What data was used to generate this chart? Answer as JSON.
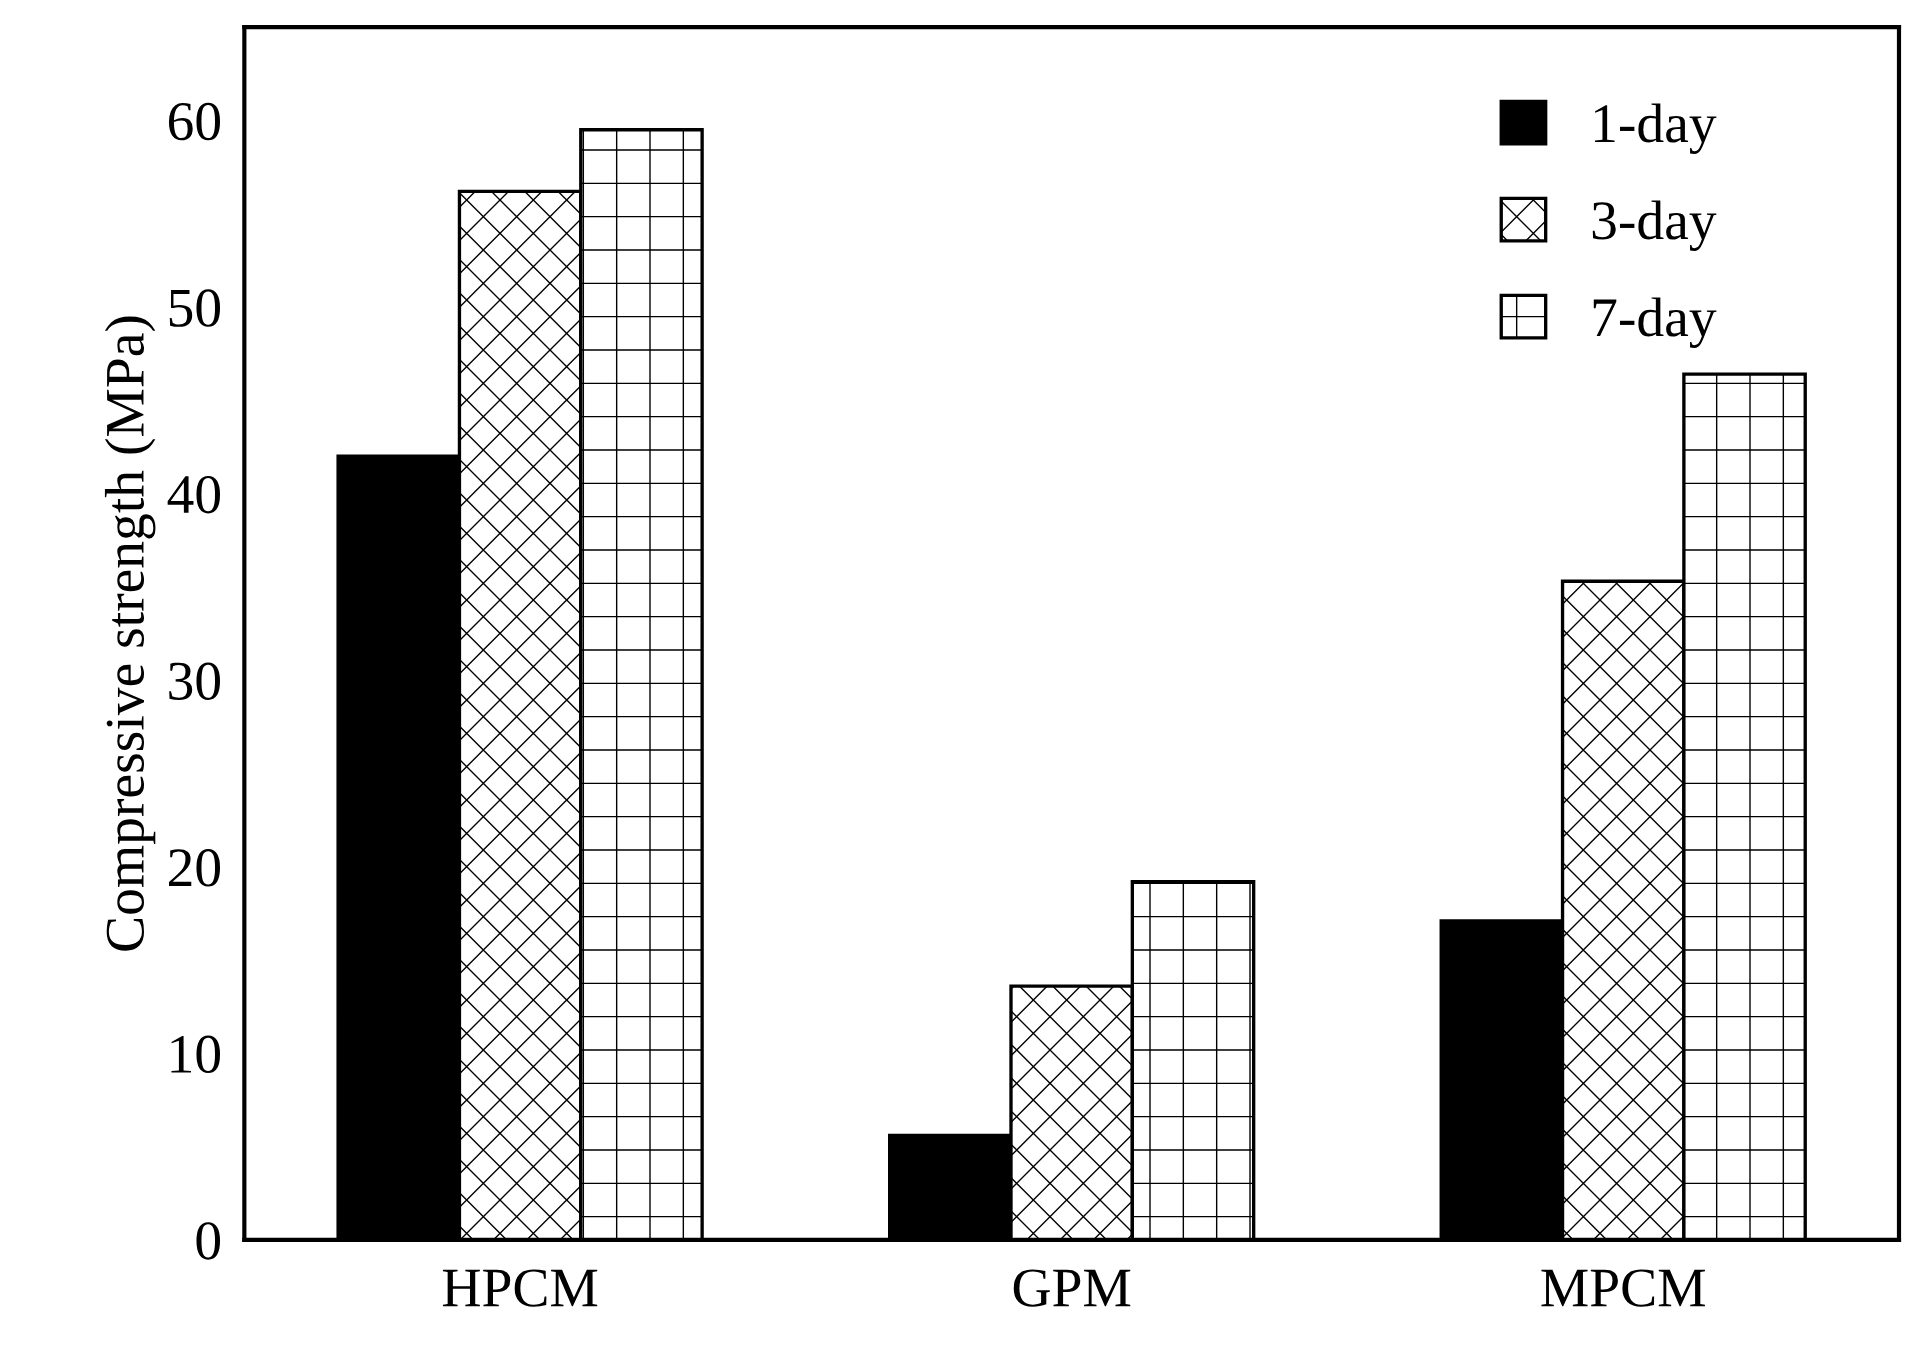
{
  "chart_data": {
    "type": "bar",
    "ylabel": "Compressive strength (MPa)",
    "categories": [
      "HPCM",
      "GPM",
      "MPCM"
    ],
    "series": [
      {
        "name": "1-day",
        "color": "#000000",
        "values": [
          42.0,
          5.6,
          17.1
        ]
      },
      {
        "name": "3-day",
        "color": "#000000",
        "values": [
          56.2,
          13.6,
          35.3
        ]
      },
      {
        "name": "7-day",
        "color": "#000000",
        "values": [
          59.5,
          19.2,
          46.4
        ]
      }
    ],
    "ylim": [
      0,
      65
    ],
    "yticks": [
      0,
      10,
      20,
      30,
      40,
      50,
      60
    ],
    "legend": "top right"
  }
}
